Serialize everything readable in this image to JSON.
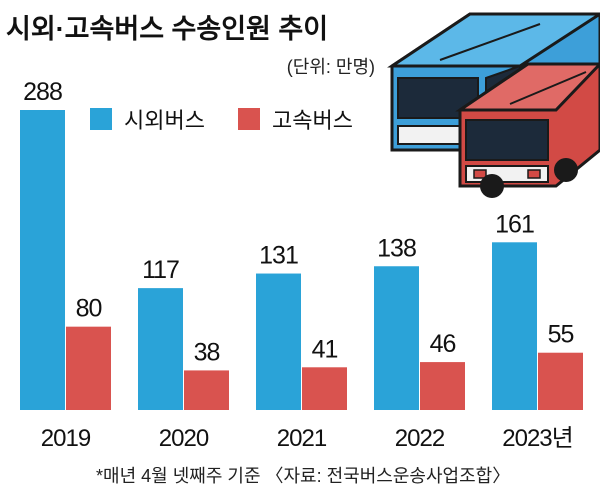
{
  "chart_data": {
    "type": "bar",
    "title": "시외·고속버스 수송인원 추이",
    "unit": "(단위: 만명)",
    "categories": [
      "2019",
      "2020",
      "2021",
      "2022",
      "2023년"
    ],
    "series": [
      {
        "name": "시외버스",
        "values": [
          288,
          117,
          131,
          138,
          161
        ],
        "color": "#2aa3d8"
      },
      {
        "name": "고속버스",
        "values": [
          80,
          38,
          41,
          46,
          55
        ],
        "color": "#d9534f"
      }
    ],
    "ylim": [
      0,
      288
    ],
    "legend_position": "top-left",
    "grid": false
  },
  "footnote": "*매년 4월 넷째주 기준 〈자료: 전국버스운송사업조합〉",
  "colors": {
    "bus_blue": "#3d9fd9",
    "bus_red": "#d24a45",
    "outline": "#1a1a1a"
  }
}
